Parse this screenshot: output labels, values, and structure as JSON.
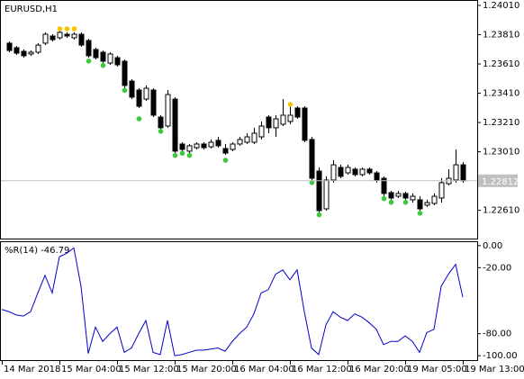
{
  "chart_data": [
    {
      "type": "candlestick",
      "label": "EURUSD,H1",
      "open": [
        null,
        1.23752,
        1.23721,
        1.23696,
        1.23678,
        1.2369,
        1.23752,
        1.23801,
        1.23789,
        1.23813,
        1.23789,
        1.23813,
        1.2377,
        1.23709,
        1.2369,
        1.23616,
        1.23653,
        1.23629,
        1.23493,
        1.23432,
        1.2337,
        1.23432,
        1.23247,
        1.23186,
        1.2337,
        1.23063,
        1.23014,
        1.23038,
        1.23063,
        1.23044,
        1.23088,
        1.23032,
        1.23026,
        1.23063,
        1.23075,
        1.23075,
        1.23112,
        1.23247,
        1.23174,
        1.23198,
        1.23217,
        1.23309,
        1.23309,
        1.23094,
        1.22878,
        1.2262,
        1.22817,
        1.22903,
        1.22866,
        1.22891,
        1.22854,
        1.22891,
        1.22866,
        1.22829,
        1.22731,
        1.22706,
        1.22725,
        1.22682,
        1.22682,
        1.22645,
        1.22657,
        1.22694,
        1.22792,
        1.22817,
        1.22921
      ],
      "high": [
        null,
        1.23764,
        1.23733,
        1.23709,
        1.23702,
        1.23752,
        1.23826,
        1.23813,
        1.23838,
        1.23826,
        1.23826,
        1.23826,
        1.23782,
        1.23721,
        1.23702,
        1.2369,
        1.23666,
        1.23641,
        1.23506,
        1.23444,
        1.23463,
        1.23444,
        1.2326,
        1.23432,
        1.23383,
        1.23075,
        1.23063,
        1.23075,
        1.23075,
        1.23094,
        1.23112,
        1.23063,
        1.23075,
        1.23112,
        1.23137,
        1.23174,
        1.23217,
        1.2326,
        1.2326,
        1.2337,
        1.23321,
        1.23321,
        1.23321,
        1.23112,
        1.22903,
        1.22842,
        1.22952,
        1.22921,
        1.22921,
        1.22903,
        1.22903,
        1.22903,
        1.22878,
        1.22842,
        1.22743,
        1.22743,
        1.22737,
        1.22725,
        1.22706,
        1.22682,
        1.22725,
        1.22829,
        1.22891,
        1.23026,
        1.22939
      ],
      "low": [
        null,
        1.2369,
        1.23672,
        1.23653,
        1.23666,
        1.23678,
        1.23739,
        1.23764,
        1.23776,
        1.23789,
        1.23776,
        1.23727,
        1.23653,
        1.23641,
        1.23616,
        1.23604,
        1.23592,
        1.23444,
        1.2337,
        1.23309,
        1.23358,
        1.23247,
        1.23161,
        1.23174,
        1.23001,
        1.23014,
        1.23001,
        1.23026,
        1.23026,
        1.23032,
        1.23038,
        1.22989,
        1.23014,
        1.23051,
        1.23063,
        1.23063,
        1.23094,
        1.23137,
        1.23112,
        1.23186,
        1.23198,
        1.23235,
        1.23075,
        1.22817,
        1.22596,
        1.22608,
        1.22799,
        1.22829,
        1.22854,
        1.22842,
        1.22842,
        1.22854,
        1.22799,
        1.22706,
        1.22682,
        1.22694,
        1.22682,
        1.22663,
        1.22608,
        1.22633,
        1.22645,
        1.22663,
        1.2278,
        1.22799,
        1.22799
      ],
      "close": [
        null,
        1.23702,
        1.23684,
        1.23666,
        1.2369,
        1.23739,
        1.23813,
        1.23776,
        1.23826,
        1.23801,
        1.23813,
        1.23739,
        1.23666,
        1.23653,
        1.23629,
        1.23678,
        1.23604,
        1.23463,
        1.23383,
        1.23321,
        1.23444,
        1.2326,
        1.23174,
        1.23401,
        1.23014,
        1.23026,
        1.23051,
        1.23063,
        1.23038,
        1.23075,
        1.23051,
        1.23001,
        1.23063,
        1.23094,
        1.23112,
        1.23137,
        1.23186,
        1.23174,
        1.23235,
        1.2326,
        1.2326,
        1.23247,
        1.23088,
        1.22829,
        1.22608,
        1.22817,
        1.22921,
        1.22842,
        1.22903,
        1.22854,
        1.22891,
        1.22866,
        1.22817,
        1.22725,
        1.22694,
        1.22725,
        1.22694,
        1.22706,
        1.2262,
        1.22663,
        1.22706,
        1.22799,
        1.22829,
        1.22921,
        1.22812
      ],
      "markers": [
        {
          "color": "#f5c400",
          "values": [
            null,
            null,
            null,
            null,
            null,
            null,
            null,
            null,
            1.2385,
            1.2385,
            1.2385,
            null,
            null,
            null,
            null,
            null,
            null,
            null,
            null,
            null,
            null,
            null,
            null,
            null,
            null,
            null,
            null,
            null,
            null,
            null,
            null,
            null,
            null,
            null,
            null,
            null,
            null,
            null,
            null,
            null,
            1.23333,
            null,
            null,
            null,
            null,
            null,
            null,
            null,
            null,
            null,
            null,
            null,
            null,
            null,
            null,
            null,
            null,
            null,
            null,
            null,
            null,
            null,
            null,
            null,
            null
          ]
        },
        {
          "color": "#3cc83c",
          "values": [
            null,
            null,
            null,
            null,
            null,
            null,
            null,
            null,
            null,
            null,
            null,
            null,
            1.2363,
            null,
            1.236,
            null,
            null,
            1.2343,
            null,
            1.23235,
            null,
            null,
            1.2315,
            null,
            1.22985,
            1.23,
            1.22985,
            null,
            null,
            null,
            null,
            1.22952,
            null,
            null,
            null,
            null,
            null,
            null,
            null,
            null,
            null,
            null,
            null,
            1.228,
            1.2258,
            null,
            null,
            null,
            null,
            null,
            null,
            null,
            null,
            1.2269,
            1.22665,
            null,
            1.22665,
            null,
            1.2259,
            null,
            null,
            null,
            null,
            null,
            null
          ]
        }
      ],
      "up_color": "#ffffff",
      "down_color": "#000000",
      "edge_color": "#000000",
      "current_price": 1.22812,
      "ylim": [
        1.22417,
        1.24047
      ],
      "yticks": [
        {
          "value": 1.2401,
          "label": "1.24010"
        },
        {
          "value": 1.2381,
          "label": "1.23810"
        },
        {
          "value": 1.2361,
          "label": "1.23610"
        },
        {
          "value": 1.2341,
          "label": "1.23410"
        },
        {
          "value": 1.2321,
          "label": "1.23210"
        },
        {
          "value": 1.2301,
          "label": "1.23010"
        },
        {
          "value": 1.2261,
          "label": "1.22610"
        }
      ]
    },
    {
      "type": "line",
      "label": "%R(14) -46.79",
      "color": "#0000cd",
      "categories": [
        "14 Mar 2018",
        null,
        null,
        null,
        null,
        null,
        null,
        null,
        "15 Mar 04:00",
        null,
        null,
        null,
        null,
        null,
        null,
        null,
        "15 Mar 12:00",
        null,
        null,
        null,
        null,
        null,
        null,
        null,
        "15 Mar 20:00",
        null,
        null,
        null,
        null,
        null,
        null,
        null,
        "16 Mar 04:00",
        null,
        null,
        null,
        null,
        null,
        null,
        null,
        "16 Mar 12:00",
        null,
        null,
        null,
        null,
        null,
        null,
        null,
        "16 Mar 20:00",
        null,
        null,
        null,
        null,
        null,
        null,
        null,
        "19 Mar 05:00",
        null,
        null,
        null,
        null,
        null,
        null,
        null,
        "19 Mar 13:00"
      ],
      "values": [
        -58,
        -60,
        -63,
        -64,
        -60,
        -43,
        -27,
        -43,
        -10,
        -7,
        -2,
        -37,
        -98,
        -74,
        -87,
        -80,
        -74,
        -97,
        -93,
        -80,
        -68,
        -97,
        -99,
        -68,
        -100,
        -99,
        -97,
        -95,
        -95,
        -94,
        -93,
        -96,
        -87,
        -80,
        -74,
        -62,
        -43,
        -40,
        -26,
        -22,
        -31,
        -22,
        -60,
        -93,
        -99,
        -72,
        -60,
        -65,
        -68,
        -62,
        -65,
        -70,
        -76,
        -90,
        -87,
        -87,
        -82,
        -87,
        -97,
        -79,
        -76,
        -37,
        -26,
        -17,
        -46.79
      ],
      "ylim": [
        -104,
        4
      ],
      "yticks": [
        {
          "value": 0,
          "label": "0.00"
        },
        {
          "value": -20,
          "label": "-20.00"
        },
        {
          "value": -80,
          "label": "-80.00"
        },
        {
          "value": -100,
          "label": "-100.00"
        }
      ]
    }
  ]
}
